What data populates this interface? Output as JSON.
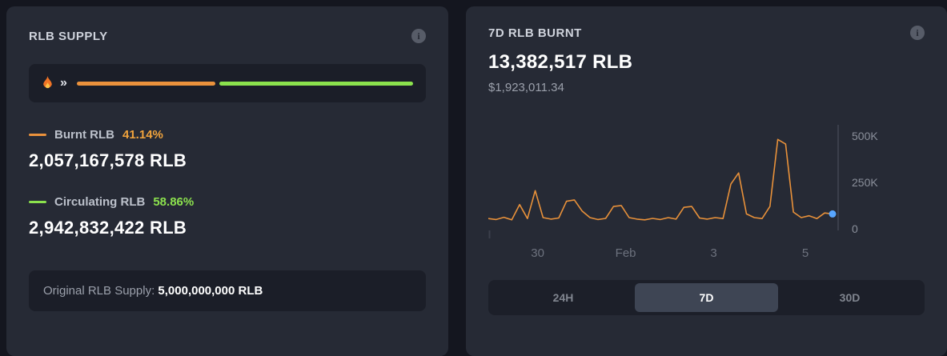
{
  "icons": {
    "info": "i",
    "chevrons": "»"
  },
  "supply_card": {
    "title": "RLB SUPPLY",
    "burnt_pct_value": 41.14,
    "burnt": {
      "label": "Burnt RLB",
      "percent": "41.14%",
      "amount": "2,057,167,578 RLB"
    },
    "circulating": {
      "label": "Circulating RLB",
      "percent": "58.86%",
      "amount": "2,942,832,422 RLB"
    },
    "original_label": "Original RLB Supply:",
    "original_amount": "5,000,000,000 RLB",
    "colors": {
      "burnt": "#eb923c",
      "circulating": "#8be24d"
    }
  },
  "burnt_card": {
    "title": "7D RLB BURNT",
    "amount": "13,382,517 RLB",
    "usd": "$1,923,011.34",
    "tabs": [
      {
        "label": "24H",
        "active": false
      },
      {
        "label": "7D",
        "active": true
      },
      {
        "label": "30D",
        "active": false
      }
    ]
  },
  "chart_data": {
    "type": "line",
    "title": "7D RLB Burnt",
    "series": [
      {
        "name": "RLB Burnt",
        "values": [
          55000,
          50000,
          62000,
          48000,
          130000,
          55000,
          205000,
          60000,
          52000,
          58000,
          148000,
          155000,
          95000,
          60000,
          50000,
          56000,
          120000,
          125000,
          60000,
          52000,
          48000,
          56000,
          50000,
          60000,
          52000,
          115000,
          120000,
          58000,
          52000,
          60000,
          55000,
          240000,
          300000,
          80000,
          60000,
          55000,
          120000,
          480000,
          455000,
          90000,
          60000,
          70000,
          55000,
          85000,
          80000
        ]
      }
    ],
    "ylim": [
      0,
      550000
    ],
    "yticks": [
      {
        "label": "500K",
        "value": 500000
      },
      {
        "label": "250K",
        "value": 250000
      },
      {
        "label": "0",
        "value": 0
      }
    ],
    "xticks": [
      {
        "label": "30",
        "pos": 0.14
      },
      {
        "label": "Feb",
        "pos": 0.39
      },
      {
        "label": "3",
        "pos": 0.64
      },
      {
        "label": "5",
        "pos": 0.9
      }
    ],
    "grid": false,
    "legend_position": "none",
    "line_color": "#e8913a",
    "endpoint_color": "#58a6ff",
    "axis_color": "#3b3f4b"
  }
}
